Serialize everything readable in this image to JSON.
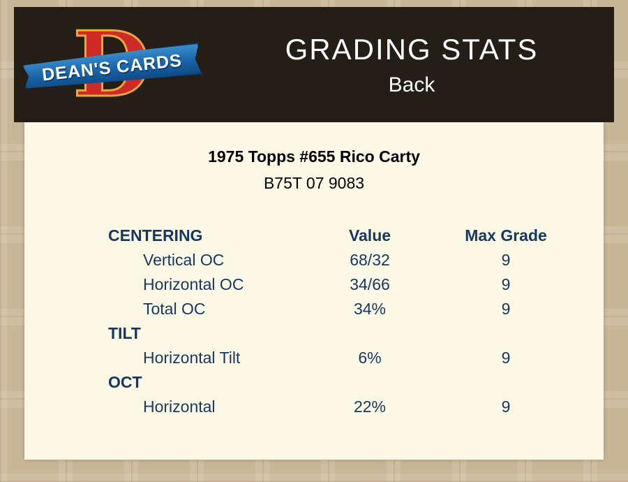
{
  "header": {
    "title": "GRADING STATS",
    "subtitle": "Back",
    "logo": {
      "letter": "D",
      "banner": "DEAN'S CARDS"
    }
  },
  "card": {
    "title": "1975 Topps #655 Rico Carty",
    "serial": "B75T 07 9083"
  },
  "table": {
    "columns": [
      "CENTERING",
      "Value",
      "Max Grade"
    ],
    "rows": [
      {
        "label": "Vertical OC",
        "value": "68/32",
        "grade": "9"
      },
      {
        "label": "Horizontal OC",
        "value": "34/66",
        "grade": "9"
      },
      {
        "label": "Total OC",
        "value": "34%",
        "grade": "9"
      },
      {
        "label": "TILT",
        "value": "",
        "grade": ""
      },
      {
        "label": "Horizontal Tilt",
        "value": "6%",
        "grade": "9"
      },
      {
        "label": "OCT",
        "value": "",
        "grade": ""
      },
      {
        "label": "Horizontal",
        "value": "22%",
        "grade": "9"
      }
    ]
  },
  "colors": {
    "page_bg": "#c9b697",
    "header_bg": "#241e16",
    "panel_bg": "#fcf8e6",
    "table_text": "#17375e",
    "logo_red": "#ce2a28",
    "logo_gold": "#e9a83a",
    "banner_blue": "#1763a8"
  }
}
